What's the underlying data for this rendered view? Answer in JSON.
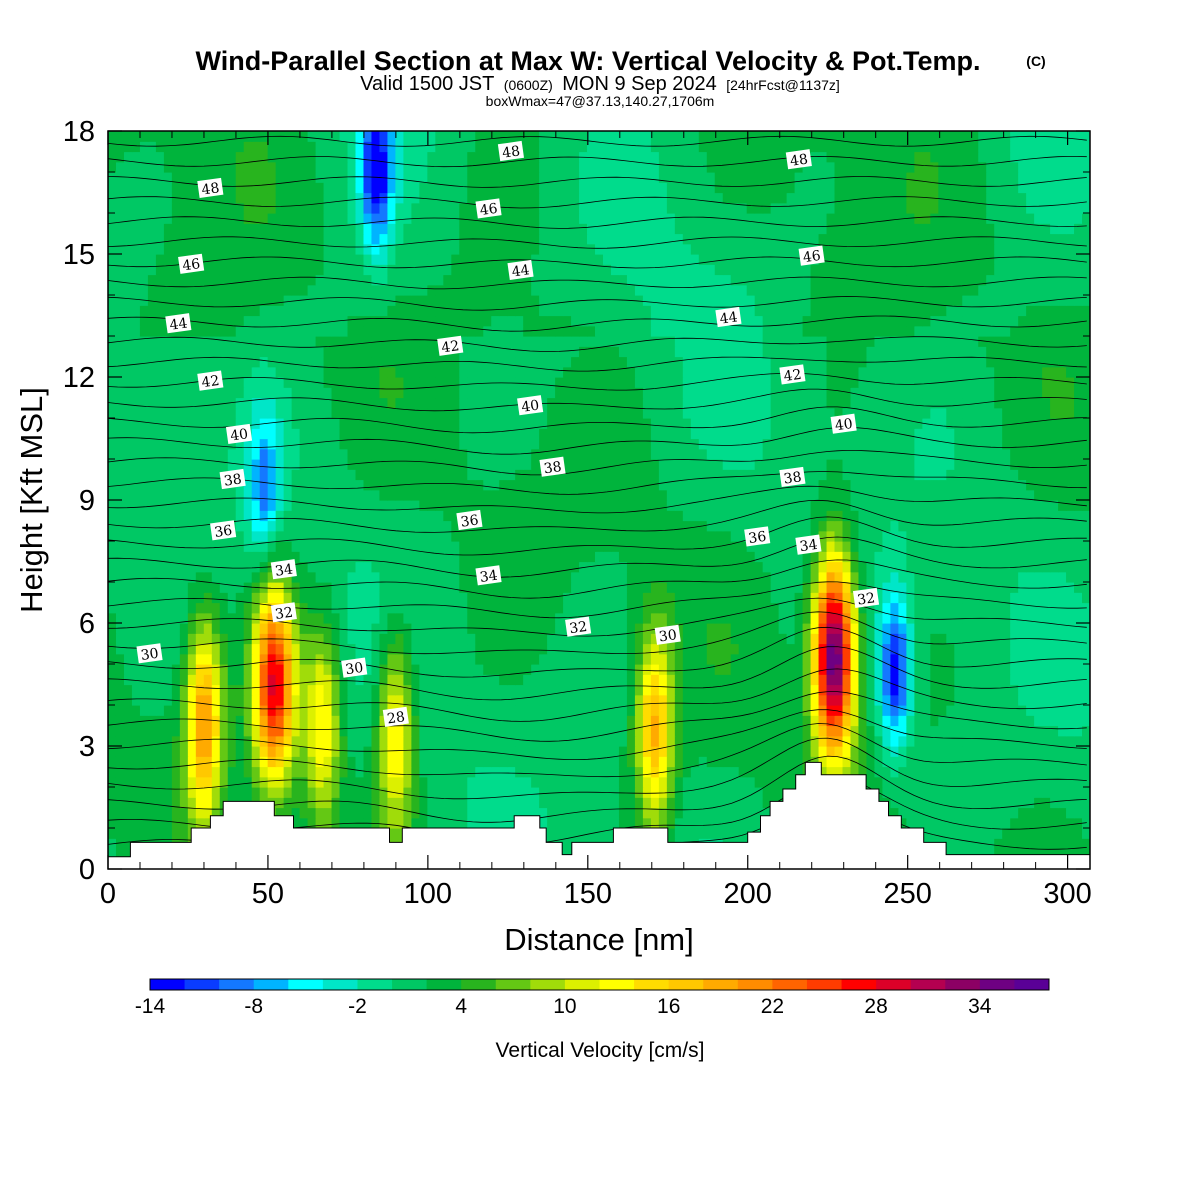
{
  "title": {
    "main": "Wind-Parallel Section at Max W: Vertical Velocity & Pot.Temp.",
    "copyright": "(C)",
    "valid_prefix": "Valid 1500 JST",
    "valid_zulu": "(0600Z)",
    "valid_date": "MON 9 Sep 2024",
    "forecast": "[24hrFcst@1137z]",
    "box_info": "boxWmax=47@37.13,140.27,1706m"
  },
  "chart_data": {
    "type": "heatmap",
    "xlabel": "Distance [nm]",
    "ylabel": "Height [Kft MSL]",
    "xlim": [
      0,
      307
    ],
    "ylim": [
      0,
      18
    ],
    "x_ticks": [
      "0",
      "50",
      "100",
      "150",
      "200",
      "250",
      "300"
    ],
    "x_tick_values": [
      0,
      50,
      100,
      150,
      200,
      250,
      300
    ],
    "y_ticks": [
      "0",
      "3",
      "6",
      "9",
      "12",
      "15",
      "18"
    ],
    "y_tick_values": [
      0,
      3,
      6,
      9,
      12,
      15,
      18
    ],
    "colorbar": {
      "label": "Vertical Velocity [cm/s]",
      "min": -14,
      "max": 38,
      "step": 2,
      "tick_labels": [
        "-14",
        "-8",
        "-2",
        "4",
        "10",
        "16",
        "22",
        "28",
        "34"
      ],
      "tick_values": [
        -14,
        -8,
        -2,
        4,
        10,
        16,
        22,
        28,
        34
      ],
      "colors": [
        "#0000ff",
        "#0a3cff",
        "#1478ff",
        "#00b4ff",
        "#00ffff",
        "#00e6c8",
        "#00dc8c",
        "#00c864",
        "#00b43c",
        "#28b41e",
        "#64c814",
        "#a0dc0a",
        "#dcf000",
        "#ffff00",
        "#ffdc00",
        "#ffc800",
        "#ffaa00",
        "#ff8c00",
        "#ff6400",
        "#ff3c00",
        "#ff0000",
        "#dc0028",
        "#b40050",
        "#8c0064",
        "#6e0082",
        "#5a0096"
      ]
    },
    "theta_contour_labels": [
      {
        "text": "48",
        "x": 32,
        "y": 16.6
      },
      {
        "text": "48",
        "x": 126,
        "y": 17.5
      },
      {
        "text": "48",
        "x": 216,
        "y": 17.3
      },
      {
        "text": "46",
        "x": 26,
        "y": 14.75
      },
      {
        "text": "46",
        "x": 119,
        "y": 16.1
      },
      {
        "text": "46",
        "x": 220,
        "y": 14.95
      },
      {
        "text": "44",
        "x": 22,
        "y": 13.3
      },
      {
        "text": "44",
        "x": 129,
        "y": 14.6
      },
      {
        "text": "44",
        "x": 194,
        "y": 13.45
      },
      {
        "text": "42",
        "x": 32,
        "y": 11.9
      },
      {
        "text": "42",
        "x": 107,
        "y": 12.75
      },
      {
        "text": "42",
        "x": 214,
        "y": 12.05
      },
      {
        "text": "40",
        "x": 41,
        "y": 10.6
      },
      {
        "text": "40",
        "x": 132,
        "y": 11.3
      },
      {
        "text": "40",
        "x": 230,
        "y": 10.85
      },
      {
        "text": "38",
        "x": 39,
        "y": 9.5
      },
      {
        "text": "38",
        "x": 139,
        "y": 9.8
      },
      {
        "text": "38",
        "x": 214,
        "y": 9.55
      },
      {
        "text": "36",
        "x": 36,
        "y": 8.25
      },
      {
        "text": "36",
        "x": 113,
        "y": 8.5
      },
      {
        "text": "36",
        "x": 203,
        "y": 8.1
      },
      {
        "text": "34",
        "x": 55,
        "y": 7.3
      },
      {
        "text": "34",
        "x": 119,
        "y": 7.15
      },
      {
        "text": "34",
        "x": 219,
        "y": 7.9
      },
      {
        "text": "32",
        "x": 55,
        "y": 6.25
      },
      {
        "text": "32",
        "x": 147,
        "y": 5.9
      },
      {
        "text": "32",
        "x": 237,
        "y": 6.6
      },
      {
        "text": "30",
        "x": 13,
        "y": 5.25
      },
      {
        "text": "30",
        "x": 77,
        "y": 4.9
      },
      {
        "text": "30",
        "x": 175,
        "y": 5.7
      },
      {
        "text": "28",
        "x": 90,
        "y": 3.7
      }
    ],
    "notable_features": [
      {
        "kind": "updraft",
        "x": 30,
        "y": 3.6,
        "peak_w": 20
      },
      {
        "kind": "updraft",
        "x": 52,
        "y": 4.5,
        "peak_w": 28
      },
      {
        "kind": "updraft",
        "x": 67,
        "y": 3.5,
        "peak_w": 14
      },
      {
        "kind": "updraft",
        "x": 90,
        "y": 3.3,
        "peak_w": 15
      },
      {
        "kind": "updraft",
        "x": 171,
        "y": 3.4,
        "peak_w": 18
      },
      {
        "kind": "updraft",
        "x": 227,
        "y": 5.2,
        "peak_w": 37
      },
      {
        "kind": "downdraft",
        "x": 84,
        "y": 17.0,
        "peak_w": -13
      },
      {
        "kind": "downdraft",
        "x": 246,
        "y": 4.8,
        "peak_w": -13
      },
      {
        "kind": "downdraft",
        "x": 49,
        "y": 9.3,
        "peak_w": -8
      }
    ],
    "terrain_height_kft": [
      [
        0,
        0.3
      ],
      [
        7,
        0.3
      ],
      [
        7,
        0.65
      ],
      [
        26,
        0.65
      ],
      [
        26,
        1.0
      ],
      [
        32,
        1.0
      ],
      [
        32,
        1.3
      ],
      [
        36,
        1.3
      ],
      [
        36,
        1.65
      ],
      [
        52,
        1.65
      ],
      [
        52,
        1.3
      ],
      [
        58,
        1.3
      ],
      [
        58,
        1.0
      ],
      [
        88,
        1.0
      ],
      [
        88,
        0.65
      ],
      [
        92,
        0.65
      ],
      [
        92,
        1.0
      ],
      [
        127,
        1.0
      ],
      [
        127,
        1.3
      ],
      [
        135,
        1.3
      ],
      [
        135,
        1.0
      ],
      [
        137,
        1.0
      ],
      [
        137,
        0.65
      ],
      [
        142,
        0.65
      ],
      [
        142,
        0.35
      ],
      [
        145,
        0.35
      ],
      [
        145,
        0.65
      ],
      [
        158,
        0.65
      ],
      [
        158,
        1.0
      ],
      [
        175,
        1.0
      ],
      [
        175,
        0.65
      ],
      [
        200,
        0.65
      ],
      [
        200,
        0.9
      ],
      [
        204,
        0.9
      ],
      [
        204,
        1.3
      ],
      [
        207,
        1.3
      ],
      [
        207,
        1.65
      ],
      [
        211,
        1.65
      ],
      [
        211,
        1.95
      ],
      [
        215,
        1.95
      ],
      [
        215,
        2.3
      ],
      [
        218,
        2.3
      ],
      [
        218,
        2.6
      ],
      [
        223,
        2.6
      ],
      [
        223,
        2.3
      ],
      [
        237,
        2.3
      ],
      [
        237,
        1.95
      ],
      [
        241,
        1.95
      ],
      [
        241,
        1.65
      ],
      [
        244,
        1.65
      ],
      [
        244,
        1.3
      ],
      [
        248,
        1.3
      ],
      [
        248,
        1.0
      ],
      [
        255,
        1.0
      ],
      [
        255,
        0.65
      ],
      [
        262,
        0.65
      ],
      [
        262,
        0.35
      ],
      [
        307,
        0.35
      ]
    ]
  }
}
